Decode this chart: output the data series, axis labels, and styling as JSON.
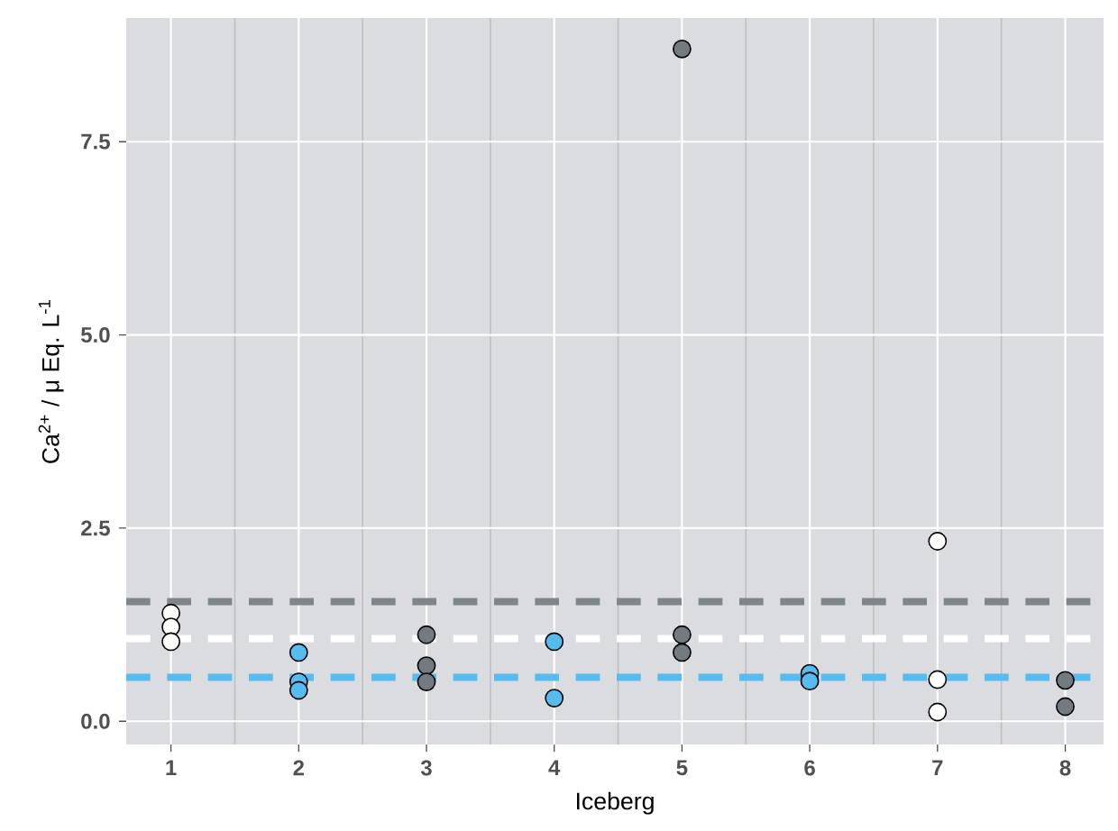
{
  "chart_data": {
    "type": "scatter",
    "xlabel": "Iceberg",
    "ylabel": "Ca$^{2+}$ / μ Eq. L$^{-1}$",
    "categories": [
      "1",
      "2",
      "3",
      "4",
      "5",
      "6",
      "7",
      "8"
    ],
    "series": [
      {
        "color": "#ffffff",
        "x": [
          "1",
          "1",
          "1",
          "7",
          "7",
          "7"
        ],
        "values": [
          1.4,
          1.22,
          1.03,
          2.33,
          0.54,
          0.12
        ]
      },
      {
        "color": "#56bcf0",
        "x": [
          "2",
          "2",
          "2",
          "4",
          "4",
          "6",
          "6"
        ],
        "values": [
          0.89,
          0.51,
          0.4,
          1.03,
          0.3,
          0.62,
          0.52
        ]
      },
      {
        "color": "#737a80",
        "x": [
          "3",
          "3",
          "3",
          "5",
          "5",
          "5",
          "8",
          "8"
        ],
        "values": [
          1.12,
          0.72,
          0.51,
          1.12,
          0.89,
          8.7,
          0.53,
          0.19
        ]
      }
    ],
    "ref_lines": [
      {
        "axis": "y",
        "value": 1.55,
        "color": "#7f868a",
        "line_style": "dashed"
      },
      {
        "axis": "y",
        "value": 1.07,
        "color": "#ffffff",
        "line_style": "dashed"
      },
      {
        "axis": "y",
        "value": 0.57,
        "color": "#56bcf0",
        "line_style": "dashed"
      }
    ],
    "ylim": [
      -0.3,
      9.1
    ],
    "yticks": [
      {
        "value": 0,
        "label": "0.0"
      },
      {
        "value": 2.5,
        "label": "2.5"
      },
      {
        "value": 5,
        "label": "5.0"
      },
      {
        "value": 7.5,
        "label": "7.5"
      }
    ],
    "grid": true
  }
}
